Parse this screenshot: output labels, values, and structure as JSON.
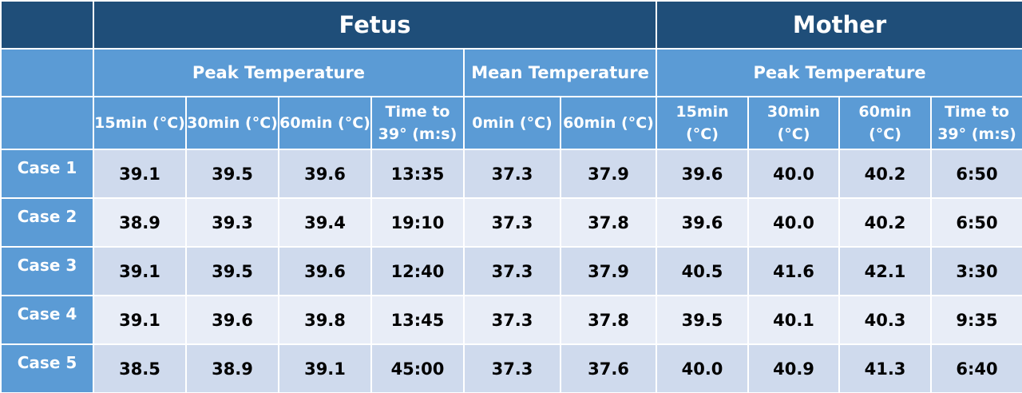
{
  "chart_data": {
    "type": "table",
    "groups": [
      "Fetus",
      "Mother"
    ],
    "subgroups": [
      "Peak Temperature",
      "Mean Temperature",
      "Peak Temperature"
    ],
    "columns": [
      "15min (°C)",
      "30min (°C)",
      "60min (°C)",
      "Time to 39° (m:s)",
      "0min (°C)",
      "60min (°C)",
      "15min (°C)",
      "30min (°C)",
      "60min (°C)",
      "Time to 39° (m:s)"
    ],
    "rows": [
      {
        "label": "Case 1",
        "values": [
          "39.1",
          "39.5",
          "39.6",
          "13:35",
          "37.3",
          "37.9",
          "39.6",
          "40.0",
          "40.2",
          "6:50"
        ]
      },
      {
        "label": "Case 2",
        "values": [
          "38.9",
          "39.3",
          "39.4",
          "19:10",
          "37.3",
          "37.8",
          "39.6",
          "40.0",
          "40.2",
          "6:50"
        ]
      },
      {
        "label": "Case 3",
        "values": [
          "39.1",
          "39.5",
          "39.6",
          "12:40",
          "37.3",
          "37.9",
          "40.5",
          "41.6",
          "42.1",
          "3:30"
        ]
      },
      {
        "label": "Case 4",
        "values": [
          "39.1",
          "39.6",
          "39.8",
          "13:45",
          "37.3",
          "37.8",
          "39.5",
          "40.1",
          "40.3",
          "9:35"
        ]
      },
      {
        "label": "Case 5",
        "values": [
          "38.5",
          "38.9",
          "39.1",
          "45:00",
          "37.3",
          "37.6",
          "40.0",
          "40.9",
          "41.3",
          "6:40"
        ]
      }
    ]
  },
  "colors": {
    "header_dark": "#1f4e79",
    "header_light": "#5b9bd5",
    "row_odd": "#cfdaed",
    "row_even": "#e8edf7"
  }
}
